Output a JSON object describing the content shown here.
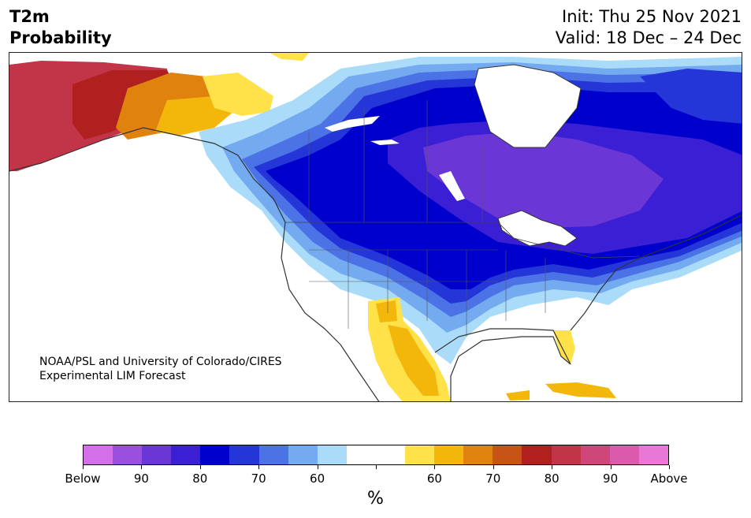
{
  "header": {
    "title_line1": "T2m",
    "title_line2": "Probability",
    "init": "Init: Thu 25 Nov 2021",
    "valid": "Valid: 18 Dec – 24 Dec"
  },
  "credit": {
    "line1": "NOAA/PSL and University of Colorado/CIRES",
    "line2": "Experimental LIM Forecast"
  },
  "colorbar": {
    "colors": [
      "#d36fe8",
      "#9b4fdf",
      "#6b36d6",
      "#3a1fd4",
      "#0000cc",
      "#2436d8",
      "#4b73e6",
      "#74aaf0",
      "#aadcfa",
      "#ffffff",
      "#ffffff",
      "#ffe14a",
      "#f3b60b",
      "#e0830e",
      "#c75417",
      "#b0201f",
      "#c23447",
      "#cf4779",
      "#db5aab",
      "#e877d8"
    ],
    "labels": [
      "Below",
      "90",
      "80",
      "70",
      "60",
      "60",
      "70",
      "80",
      "90",
      "Above"
    ],
    "units": "%"
  },
  "map_colors": {
    "blue_deep": "#0000cc",
    "blue_mid": "#2436d8",
    "blue_light": "#4b73e6",
    "blue_pale": "#74aaf0",
    "blue_palest": "#aadcfa",
    "purple": "#6b36d6",
    "indigo": "#3a1fd4",
    "yellow": "#ffe14a",
    "gold": "#f3b60b",
    "orange": "#e0830e",
    "red": "#b0201f",
    "crimson": "#c23447"
  }
}
